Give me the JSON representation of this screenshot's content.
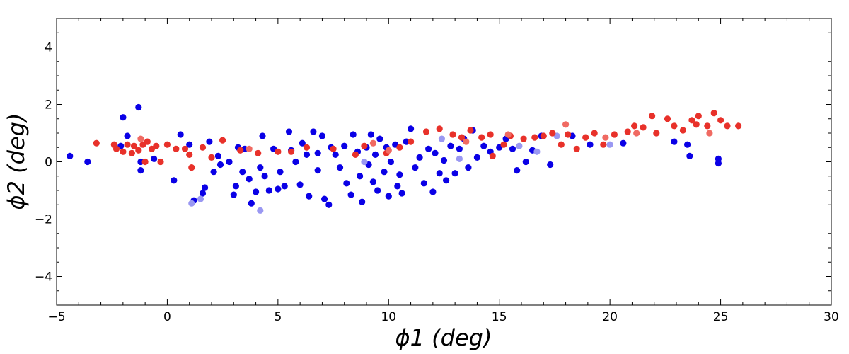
{
  "chart_data": {
    "type": "scatter",
    "xlabel": "ϕ1 (deg)",
    "ylabel": "ϕ2 (deg)",
    "xlim": [
      -5,
      30
    ],
    "ylim": [
      -5,
      5
    ],
    "x_ticks": [
      -5,
      0,
      5,
      10,
      15,
      20,
      25,
      30
    ],
    "y_ticks": [
      -4,
      -2,
      0,
      2,
      4
    ],
    "x_tick_labels": [
      "−5",
      "0",
      "5",
      "10",
      "15",
      "20",
      "25",
      "30"
    ],
    "y_tick_labels": [
      "−4",
      "−2",
      "0",
      "2",
      "4"
    ],
    "grid": false,
    "series": [
      {
        "color": "#0a00e6",
        "points": [
          [
            -4.4,
            0.2
          ],
          [
            -3.6,
            0.0
          ],
          [
            -2.0,
            1.55
          ],
          [
            -1.8,
            0.9
          ],
          [
            -1.3,
            1.9
          ],
          [
            -1.2,
            0.0
          ],
          [
            -1.2,
            -0.3
          ],
          [
            -0.6,
            0.1
          ],
          [
            0.3,
            -0.65
          ],
          [
            0.6,
            0.95
          ],
          [
            1.0,
            0.6
          ],
          [
            1.2,
            -1.35
          ],
          [
            1.6,
            -1.1
          ],
          [
            1.7,
            -0.9
          ],
          [
            1.9,
            0.7
          ],
          [
            2.1,
            -0.35
          ],
          [
            2.3,
            0.2
          ],
          [
            2.8,
            0.0
          ],
          [
            3.0,
            -1.15
          ],
          [
            3.1,
            -0.85
          ],
          [
            3.2,
            0.5
          ],
          [
            3.4,
            -0.35
          ],
          [
            3.5,
            0.45
          ],
          [
            3.7,
            -0.6
          ],
          [
            3.8,
            -1.45
          ],
          [
            4.0,
            -1.05
          ],
          [
            4.2,
            -0.2
          ],
          [
            4.3,
            0.9
          ],
          [
            4.4,
            -0.5
          ],
          [
            4.6,
            -1.0
          ],
          [
            4.8,
            0.45
          ],
          [
            5.0,
            -0.95
          ],
          [
            5.1,
            -0.35
          ],
          [
            5.3,
            -0.85
          ],
          [
            5.5,
            1.05
          ],
          [
            5.6,
            0.4
          ],
          [
            5.8,
            0.0
          ],
          [
            6.0,
            -0.8
          ],
          [
            6.1,
            0.65
          ],
          [
            6.3,
            0.25
          ],
          [
            6.4,
            -1.2
          ],
          [
            6.6,
            1.05
          ],
          [
            6.8,
            -0.3
          ],
          [
            7.0,
            0.9
          ],
          [
            7.1,
            -1.3
          ],
          [
            7.3,
            -1.5
          ],
          [
            7.4,
            0.5
          ],
          [
            7.6,
            0.25
          ],
          [
            7.8,
            -0.2
          ],
          [
            8.0,
            0.55
          ],
          [
            8.1,
            -0.75
          ],
          [
            8.3,
            -1.15
          ],
          [
            8.4,
            0.95
          ],
          [
            8.6,
            0.35
          ],
          [
            8.7,
            -0.5
          ],
          [
            8.8,
            -1.4
          ],
          [
            9.0,
            0.5
          ],
          [
            9.1,
            -0.1
          ],
          [
            9.3,
            -0.7
          ],
          [
            9.4,
            0.25
          ],
          [
            9.5,
            -1.0
          ],
          [
            9.6,
            0.8
          ],
          [
            9.8,
            -0.35
          ],
          [
            9.9,
            0.5
          ],
          [
            10.0,
            -1.2
          ],
          [
            10.1,
            0.0
          ],
          [
            10.3,
            0.6
          ],
          [
            10.5,
            -0.45
          ],
          [
            10.6,
            -1.1
          ],
          [
            10.8,
            0.7
          ],
          [
            11.0,
            1.15
          ],
          [
            11.2,
            -0.2
          ],
          [
            11.4,
            0.15
          ],
          [
            11.6,
            -0.75
          ],
          [
            11.8,
            0.45
          ],
          [
            12.0,
            -1.05
          ],
          [
            12.1,
            0.3
          ],
          [
            12.3,
            -0.4
          ],
          [
            12.5,
            0.05
          ],
          [
            12.6,
            -0.65
          ],
          [
            12.8,
            0.55
          ],
          [
            13.0,
            -0.4
          ],
          [
            13.2,
            0.45
          ],
          [
            13.4,
            0.8
          ],
          [
            13.6,
            -0.2
          ],
          [
            13.8,
            1.1
          ],
          [
            14.0,
            0.15
          ],
          [
            14.3,
            0.55
          ],
          [
            14.6,
            0.35
          ],
          [
            15.0,
            0.5
          ],
          [
            15.3,
            0.8
          ],
          [
            15.6,
            0.45
          ],
          [
            15.8,
            -0.3
          ],
          [
            16.2,
            0.0
          ],
          [
            16.5,
            0.4
          ],
          [
            16.9,
            0.9
          ],
          [
            17.3,
            -0.1
          ],
          [
            18.3,
            0.9
          ],
          [
            19.1,
            0.6
          ],
          [
            20.6,
            0.65
          ],
          [
            22.9,
            0.7
          ],
          [
            23.5,
            0.6
          ],
          [
            23.6,
            0.2
          ],
          [
            24.9,
            0.1
          ],
          [
            24.9,
            -0.05
          ],
          [
            -2.1,
            0.55
          ],
          [
            2.4,
            -0.1
          ],
          [
            6.8,
            0.3
          ],
          [
            9.2,
            0.95
          ],
          [
            10.4,
            -0.85
          ]
        ]
      },
      {
        "color": "#9a98f2",
        "points": [
          [
            1.1,
            -1.45
          ],
          [
            1.5,
            -1.3
          ],
          [
            4.2,
            -1.7
          ],
          [
            13.2,
            0.1
          ],
          [
            16.7,
            0.35
          ],
          [
            20.0,
            0.6
          ],
          [
            15.9,
            0.55
          ],
          [
            17.6,
            0.9
          ],
          [
            8.9,
            0.0
          ],
          [
            12.4,
            0.8
          ]
        ]
      },
      {
        "color": "#e8312a",
        "points": [
          [
            -3.2,
            0.65
          ],
          [
            -2.4,
            0.6
          ],
          [
            -2.3,
            0.45
          ],
          [
            -2.0,
            0.35
          ],
          [
            -1.8,
            0.6
          ],
          [
            -1.5,
            0.55
          ],
          [
            -1.3,
            0.4
          ],
          [
            -1.1,
            0.6
          ],
          [
            -0.9,
            0.7
          ],
          [
            -0.7,
            0.45
          ],
          [
            -0.5,
            0.55
          ],
          [
            -0.3,
            0.0
          ],
          [
            0.0,
            0.6
          ],
          [
            0.4,
            0.45
          ],
          [
            1.0,
            0.25
          ],
          [
            1.1,
            -0.2
          ],
          [
            1.6,
            0.5
          ],
          [
            2.0,
            0.15
          ],
          [
            2.5,
            0.75
          ],
          [
            3.3,
            0.4
          ],
          [
            4.1,
            0.3
          ],
          [
            5.0,
            0.35
          ],
          [
            6.3,
            0.5
          ],
          [
            7.5,
            0.45
          ],
          [
            8.9,
            0.55
          ],
          [
            9.9,
            0.3
          ],
          [
            10.5,
            0.5
          ],
          [
            11.0,
            0.7
          ],
          [
            11.7,
            1.05
          ],
          [
            12.3,
            1.15
          ],
          [
            12.9,
            0.95
          ],
          [
            13.3,
            0.85
          ],
          [
            13.7,
            1.1
          ],
          [
            14.2,
            0.85
          ],
          [
            14.6,
            0.95
          ],
          [
            15.2,
            0.6
          ],
          [
            15.5,
            0.9
          ],
          [
            16.1,
            0.8
          ],
          [
            16.6,
            0.85
          ],
          [
            17.0,
            0.9
          ],
          [
            17.4,
            1.0
          ],
          [
            17.8,
            0.6
          ],
          [
            18.1,
            0.95
          ],
          [
            18.5,
            0.45
          ],
          [
            18.9,
            0.85
          ],
          [
            19.3,
            1.0
          ],
          [
            19.7,
            0.6
          ],
          [
            20.2,
            0.95
          ],
          [
            20.8,
            1.05
          ],
          [
            21.1,
            1.25
          ],
          [
            21.5,
            1.2
          ],
          [
            21.9,
            1.6
          ],
          [
            22.1,
            1.0
          ],
          [
            22.6,
            1.5
          ],
          [
            22.9,
            1.25
          ],
          [
            23.3,
            1.1
          ],
          [
            23.7,
            1.45
          ],
          [
            24.0,
            1.6
          ],
          [
            24.4,
            1.25
          ],
          [
            24.7,
            1.7
          ],
          [
            25.0,
            1.45
          ],
          [
            25.3,
            1.25
          ],
          [
            25.8,
            1.25
          ],
          [
            -1.6,
            0.3
          ],
          [
            -1.0,
            0.0
          ],
          [
            0.8,
            0.45
          ],
          [
            5.6,
            0.35
          ],
          [
            8.5,
            0.25
          ],
          [
            14.7,
            0.2
          ],
          [
            23.9,
            1.3
          ]
        ]
      },
      {
        "color": "#f06a62",
        "points": [
          [
            -1.2,
            0.8
          ],
          [
            3.7,
            0.45
          ],
          [
            9.3,
            0.65
          ],
          [
            15.4,
            0.95
          ],
          [
            18.0,
            1.3
          ],
          [
            19.8,
            0.85
          ],
          [
            21.2,
            1.0
          ],
          [
            24.5,
            1.0
          ],
          [
            10.0,
            0.4
          ],
          [
            13.5,
            0.7
          ]
        ]
      }
    ]
  }
}
